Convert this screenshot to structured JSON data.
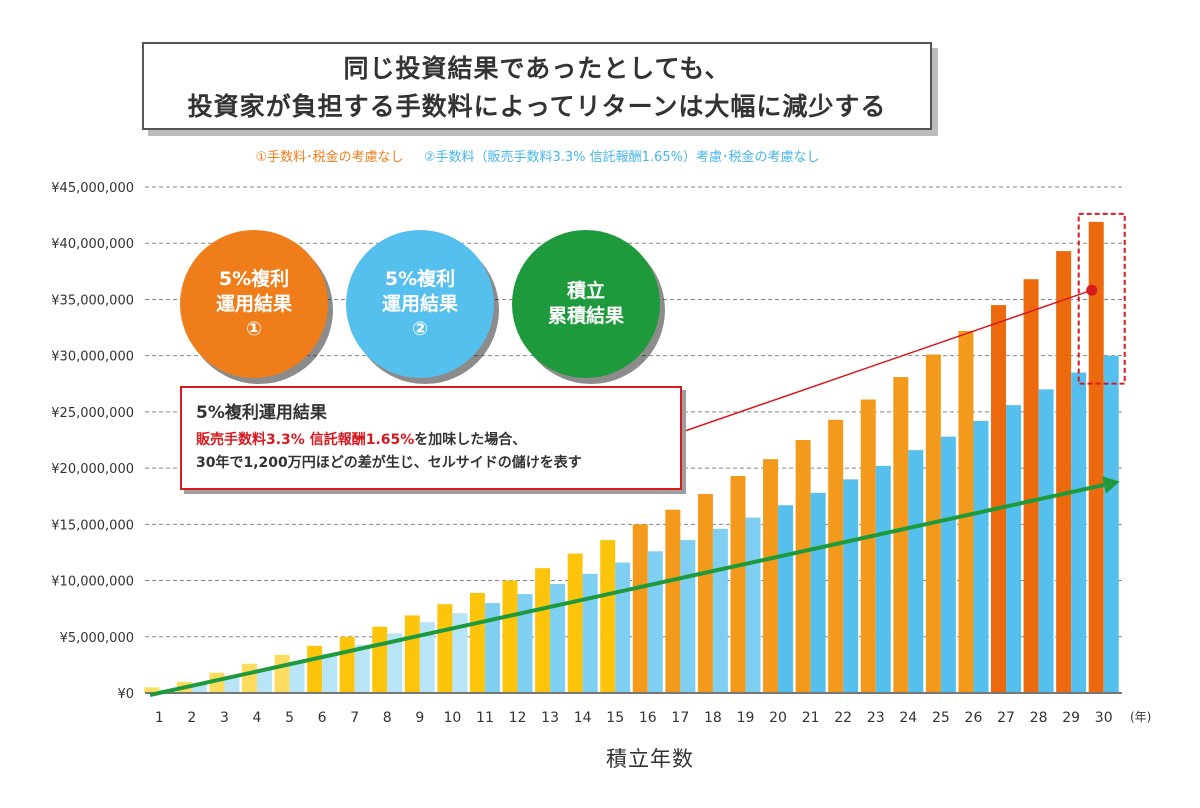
{
  "title": {
    "line1": "同じ投資結果であったとしても、",
    "line2": "投資家が負担する手数料によってリターンは大幅に減少する"
  },
  "legend": {
    "series1": "①手数料･税金の考慮なし",
    "series2": "②手数料（販売手数料3.3% 信託報酬1.65%）考慮･税金の考慮なし"
  },
  "circles": [
    {
      "line1": "5%複利",
      "line2": "運用結果",
      "line3": "①",
      "color": "#ef7d1a"
    },
    {
      "line1": "5%複利",
      "line2": "運用結果",
      "line3": "②",
      "color": "#55bfee"
    },
    {
      "line1": "積立",
      "line2": "累積結果",
      "line3": "",
      "color": "#1e9a3c"
    }
  ],
  "callout": {
    "title": "5%複利運用結果",
    "line1_red": "販売手数料3.3% 信託報酬1.65%",
    "line1_rest": "を加味した場合、",
    "line2": "30年で1,200万円ほどの差が生じ、セルサイドの儲けを表す"
  },
  "chart_data": {
    "type": "bar",
    "xlabel": "積立年数",
    "x_unit": "(年)",
    "ylim": [
      0,
      45000000
    ],
    "y_ticks": [
      "¥0",
      "¥5,000,000",
      "¥10,000,000",
      "¥15,000,000",
      "¥20,000,000",
      "¥25,000,000",
      "¥30,000,000",
      "¥35,000,000",
      "¥40,000,000",
      "¥45,000,000"
    ],
    "grid": true,
    "categories": [
      "1",
      "2",
      "3",
      "4",
      "5",
      "6",
      "7",
      "8",
      "9",
      "10",
      "11",
      "12",
      "13",
      "14",
      "15",
      "16",
      "17",
      "18",
      "19",
      "20",
      "21",
      "22",
      "23",
      "24",
      "25",
      "26",
      "27",
      "28",
      "29",
      "30"
    ],
    "series": [
      {
        "name": "①手数料･税金の考慮なし",
        "values": [
          500000,
          1000000,
          1800000,
          2600000,
          3400000,
          4200000,
          5000000,
          5900000,
          6900000,
          7900000,
          8900000,
          10000000,
          11100000,
          12400000,
          13600000,
          15000000,
          16300000,
          17700000,
          19300000,
          20800000,
          22500000,
          24300000,
          26100000,
          28100000,
          30100000,
          32200000,
          34500000,
          36800000,
          39300000,
          41900000
        ]
      },
      {
        "name": "②手数料（販売手数料3.3% 信託報酬1.65%）考慮･税金の考慮なし",
        "values": [
          300000,
          800000,
          1400000,
          2100000,
          2800000,
          3500000,
          4300000,
          5300000,
          6300000,
          7100000,
          8000000,
          8800000,
          9700000,
          10600000,
          11600000,
          12600000,
          13600000,
          14600000,
          15600000,
          16700000,
          17800000,
          19000000,
          20200000,
          21600000,
          22800000,
          24200000,
          25600000,
          27000000,
          28500000,
          30000000
        ]
      }
    ],
    "colors": {
      "series1": [
        "#fddb5e",
        "#fcc50c",
        "#f39a1c",
        "#ec6a0d"
      ],
      "series2": [
        "#b8e4f8",
        "#7fcff3",
        "#55bfee"
      ],
      "accumulated_line": "#1e9a3c",
      "pointer": "#d71920",
      "grid": "#888888"
    }
  }
}
